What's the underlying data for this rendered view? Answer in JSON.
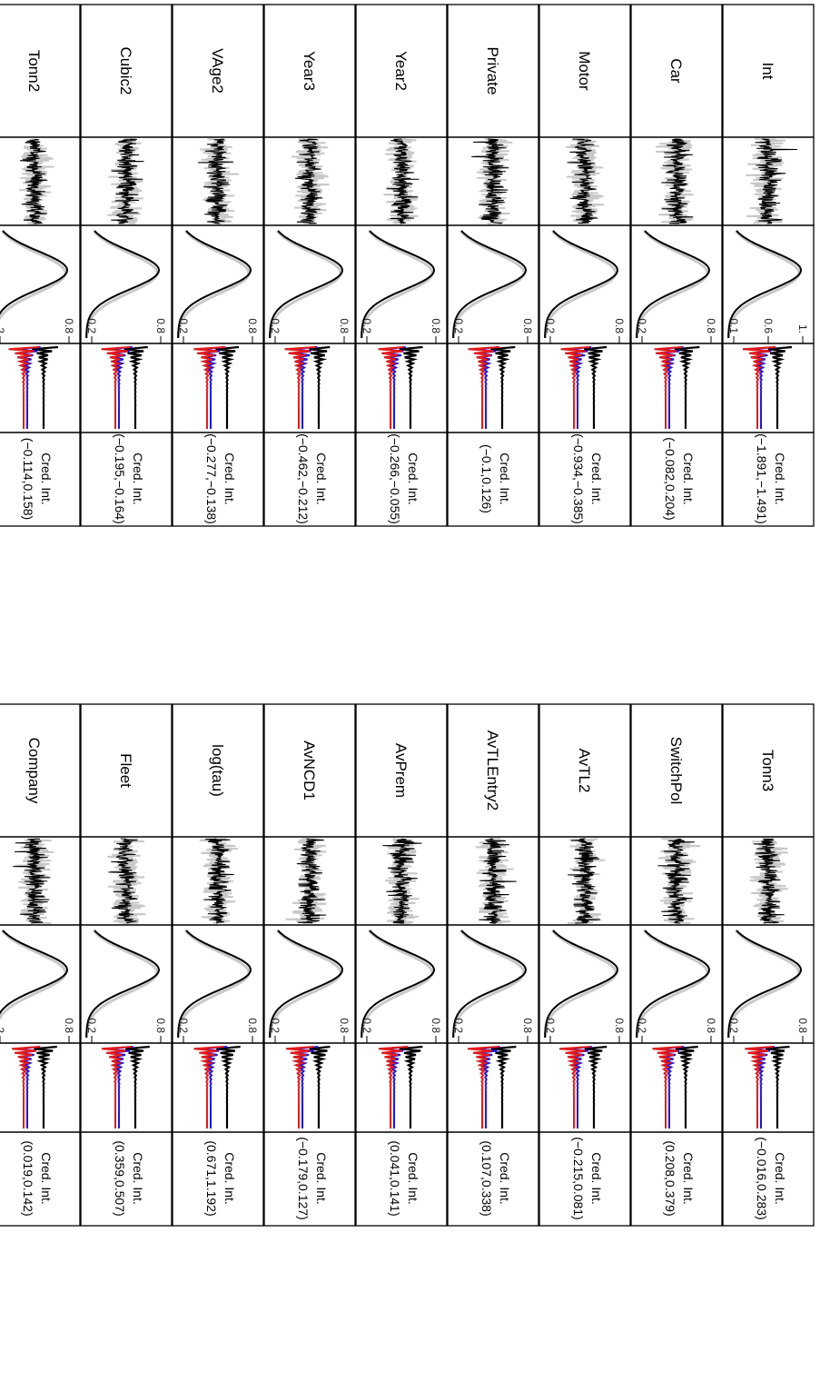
{
  "blocks": [
    {
      "rows": [
        {
          "name": "Int",
          "ci_label": "Cred. Int.",
          "ci": "(−1.891,−1.491)",
          "ticks": [
            "1.",
            "0.6",
            "0.1"
          ]
        },
        {
          "name": "Car",
          "ci_label": "Cred. Int.",
          "ci": "(−0.082,0.204)",
          "ticks": [
            "0.8",
            "0.2"
          ]
        },
        {
          "name": "Motor",
          "ci_label": "Cred. Int.",
          "ci": "(−0.934,−0.385)",
          "ticks": [
            "0.8",
            "0.2"
          ]
        },
        {
          "name": "Private",
          "ci_label": "Cred. Int.",
          "ci": "(−0.1,0.126)",
          "ticks": [
            "0.8",
            "0.2"
          ]
        },
        {
          "name": "Year2",
          "ci_label": "Cred. Int.",
          "ci": "(−0.266,−0.055)",
          "ticks": [
            "0.8",
            "0.2"
          ]
        },
        {
          "name": "Year3",
          "ci_label": "Cred. Int.",
          "ci": "(−0.462,−0.212)",
          "ticks": [
            "0.8",
            "0.2"
          ]
        },
        {
          "name": "VAge2",
          "ci_label": "Cred. Int.",
          "ci": "(−0.277,−0.138)",
          "ticks": [
            "0.8",
            "0.2"
          ]
        },
        {
          "name": "Cubic2",
          "ci_label": "Cred. Int.",
          "ci": "(−0.195,−0.164)",
          "ticks": [
            "0.8",
            "0.2"
          ]
        },
        {
          "name": "Tonn2",
          "ci_label": "Cred. Int.",
          "ci": "(−0.114,0.158)",
          "ticks": [
            "0.8",
            "2"
          ]
        }
      ]
    },
    {
      "rows": [
        {
          "name": "Tonn3",
          "ci_label": "Cred. Int.",
          "ci": "(−0.016,0.283)",
          "ticks": [
            "0.8",
            "0.2"
          ]
        },
        {
          "name": "SwitchPol",
          "ci_label": "Cred. Int.",
          "ci": "(0.208,0.379)",
          "ticks": [
            "0.8",
            "0.2"
          ]
        },
        {
          "name": "AvTL2",
          "ci_label": "Cred. Int.",
          "ci": "(−0.215,0.081)",
          "ticks": [
            "0.8",
            "0.2"
          ]
        },
        {
          "name": "AvTLEntry2",
          "ci_label": "Cred. Int.",
          "ci": "(0.107,0.338)",
          "ticks": [
            "0.8",
            "0.2"
          ]
        },
        {
          "name": "AvPrem",
          "ci_label": "Cred. Int.",
          "ci": "(0.041,0.141)",
          "ticks": [
            "0.8",
            "0.2"
          ]
        },
        {
          "name": "AvNCD1",
          "ci_label": "Cred. Int.",
          "ci": "(−0.179,0.127)",
          "ticks": [
            "0.8",
            "0.2"
          ]
        },
        {
          "name": "log(tau)",
          "ci_label": "Cred. Int.",
          "ci": "(0.671,1.192)",
          "ticks": [
            "0.8",
            "0.2"
          ]
        },
        {
          "name": "Fleet",
          "ci_label": "Cred. Int.",
          "ci": "(0.359,0.507)",
          "ticks": [
            "0.8",
            "0.2"
          ]
        },
        {
          "name": "Company",
          "ci_label": "Cred. Int.",
          "ci": "(0.019,0.142)",
          "ticks": [
            "0.8",
            "2"
          ]
        }
      ]
    }
  ],
  "colors": {
    "chain_dark": "#000000",
    "chain_light": "#c8c8c8",
    "density_prior": "#c8c8c8",
    "density_post": "#000000",
    "acf_black": "#000000",
    "acf_blue": "#1a1adb",
    "acf_red": "#e41a1c"
  }
}
